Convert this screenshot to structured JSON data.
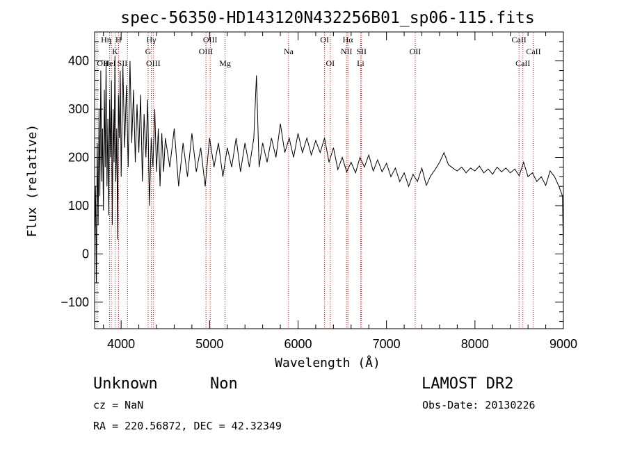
{
  "title": "spec-56350-HD143120N432256B01_sp06-115.fits",
  "info": {
    "object_type": "Unknown",
    "object_class": "Non",
    "survey": "LAMOST DR2",
    "cz": "cz = NaN",
    "obs_date": "Obs-Date: 20130226",
    "radec": "RA = 220.56872, DEC =  42.32349"
  },
  "chart_data": {
    "type": "line",
    "title": "spec-56350-HD143120N432256B01_sp06-115.fits",
    "xlabel": "Wavelength (Å)",
    "ylabel": "Flux (relative)",
    "xlim": [
      3700,
      9000
    ],
    "ylim": [
      -155,
      460
    ],
    "x_ticks": [
      4000,
      5000,
      6000,
      7000,
      8000,
      9000
    ],
    "y_ticks": [
      -100,
      0,
      100,
      200,
      300,
      400
    ],
    "grid": false,
    "line_color": "#000000",
    "marker_color": "#cc0000",
    "series": [
      {
        "points": [
          [
            3700,
            20
          ],
          [
            3710,
            140
          ],
          [
            3720,
            -60
          ],
          [
            3730,
            230
          ],
          [
            3740,
            60
          ],
          [
            3750,
            300
          ],
          [
            3760,
            120
          ],
          [
            3770,
            380
          ],
          [
            3780,
            150
          ],
          [
            3790,
            260
          ],
          [
            3800,
            90
          ],
          [
            3810,
            340
          ],
          [
            3820,
            180
          ],
          [
            3830,
            400
          ],
          [
            3840,
            140
          ],
          [
            3850,
            280
          ],
          [
            3860,
            80
          ],
          [
            3870,
            320
          ],
          [
            3880,
            200
          ],
          [
            3890,
            360
          ],
          [
            3900,
            60
          ],
          [
            3910,
            300
          ],
          [
            3920,
            190
          ],
          [
            3930,
            410
          ],
          [
            3940,
            150
          ],
          [
            3950,
            260
          ],
          [
            3960,
            30
          ],
          [
            3970,
            330
          ],
          [
            3980,
            240
          ],
          [
            3990,
            380
          ],
          [
            4000,
            160
          ],
          [
            4020,
            390
          ],
          [
            4040,
            220
          ],
          [
            4060,
            350
          ],
          [
            4080,
            180
          ],
          [
            4100,
            400
          ],
          [
            4120,
            230
          ],
          [
            4140,
            340
          ],
          [
            4160,
            190
          ],
          [
            4180,
            310
          ],
          [
            4200,
            210
          ],
          [
            4220,
            330
          ],
          [
            4240,
            150
          ],
          [
            4260,
            290
          ],
          [
            4280,
            200
          ],
          [
            4300,
            320
          ],
          [
            4320,
            100
          ],
          [
            4340,
            240
          ],
          [
            4360,
            180
          ],
          [
            4380,
            300
          ],
          [
            4400,
            170
          ],
          [
            4420,
            260
          ],
          [
            4440,
            140
          ],
          [
            4460,
            250
          ],
          [
            4480,
            170
          ],
          [
            4500,
            240
          ],
          [
            4550,
            180
          ],
          [
            4600,
            260
          ],
          [
            4650,
            140
          ],
          [
            4700,
            230
          ],
          [
            4750,
            160
          ],
          [
            4800,
            250
          ],
          [
            4850,
            170
          ],
          [
            4900,
            220
          ],
          [
            4950,
            140
          ],
          [
            5000,
            240
          ],
          [
            5050,
            180
          ],
          [
            5100,
            230
          ],
          [
            5150,
            160
          ],
          [
            5200,
            220
          ],
          [
            5250,
            180
          ],
          [
            5300,
            240
          ],
          [
            5350,
            170
          ],
          [
            5400,
            230
          ],
          [
            5450,
            180
          ],
          [
            5500,
            240
          ],
          [
            5530,
            370
          ],
          [
            5560,
            180
          ],
          [
            5600,
            230
          ],
          [
            5650,
            190
          ],
          [
            5700,
            240
          ],
          [
            5750,
            200
          ],
          [
            5800,
            270
          ],
          [
            5850,
            210
          ],
          [
            5900,
            240
          ],
          [
            5950,
            200
          ],
          [
            6000,
            250
          ],
          [
            6050,
            210
          ],
          [
            6100,
            240
          ],
          [
            6150,
            205
          ],
          [
            6200,
            235
          ],
          [
            6250,
            210
          ],
          [
            6300,
            240
          ],
          [
            6350,
            190
          ],
          [
            6400,
            220
          ],
          [
            6450,
            175
          ],
          [
            6500,
            200
          ],
          [
            6550,
            170
          ],
          [
            6600,
            190
          ],
          [
            6650,
            168
          ],
          [
            6700,
            200
          ],
          [
            6750,
            180
          ],
          [
            6800,
            205
          ],
          [
            6850,
            172
          ],
          [
            6900,
            195
          ],
          [
            6950,
            170
          ],
          [
            7000,
            188
          ],
          [
            7050,
            160
          ],
          [
            7100,
            178
          ],
          [
            7150,
            150
          ],
          [
            7200,
            168
          ],
          [
            7250,
            140
          ],
          [
            7300,
            165
          ],
          [
            7350,
            150
          ],
          [
            7400,
            178
          ],
          [
            7450,
            142
          ],
          [
            7500,
            162
          ],
          [
            7550,
            175
          ],
          [
            7600,
            190
          ],
          [
            7650,
            210
          ],
          [
            7700,
            185
          ],
          [
            7750,
            178
          ],
          [
            7800,
            172
          ],
          [
            7850,
            180
          ],
          [
            7900,
            168
          ],
          [
            7950,
            178
          ],
          [
            8000,
            172
          ],
          [
            8050,
            182
          ],
          [
            8100,
            168
          ],
          [
            8150,
            176
          ],
          [
            8200,
            165
          ],
          [
            8250,
            180
          ],
          [
            8300,
            170
          ],
          [
            8350,
            178
          ],
          [
            8400,
            168
          ],
          [
            8450,
            176
          ],
          [
            8500,
            162
          ],
          [
            8550,
            190
          ],
          [
            8600,
            160
          ],
          [
            8650,
            168
          ],
          [
            8700,
            150
          ],
          [
            8750,
            160
          ],
          [
            8800,
            142
          ],
          [
            8850,
            172
          ],
          [
            8900,
            160
          ],
          [
            8950,
            140
          ],
          [
            8990,
            120
          ],
          [
            9000,
            0
          ]
        ]
      }
    ],
    "line_markers": [
      {
        "x": 3889,
        "label": "Hη",
        "row": 0,
        "align": "end"
      },
      {
        "x": 3933,
        "label": "K",
        "row": 1,
        "align": "middle"
      },
      {
        "x": 3970,
        "label": "H",
        "row": 0,
        "align": "middle"
      },
      {
        "x": 3727,
        "label": "OII",
        "row": 2,
        "align": "start"
      },
      {
        "x": 3869,
        "label": "HeI",
        "row": 2,
        "align": "middle"
      },
      {
        "x": 4072,
        "label": "SII",
        "row": 2,
        "align": "end"
      },
      {
        "x": 4341,
        "label": "Hγ",
        "row": 0,
        "align": "middle"
      },
      {
        "x": 4305,
        "label": "G",
        "row": 1,
        "align": "middle"
      },
      {
        "x": 4363,
        "label": "OIII",
        "row": 2,
        "align": "middle"
      },
      {
        "x": 5007,
        "label": "OIII",
        "row": 0,
        "align": "middle"
      },
      {
        "x": 4959,
        "label": "OIII",
        "row": 1,
        "align": "middle"
      },
      {
        "x": 5175,
        "label": "Mg",
        "row": 2,
        "align": "middle"
      },
      {
        "x": 5893,
        "label": "Na",
        "row": 1,
        "align": "middle"
      },
      {
        "x": 6300,
        "label": "OI",
        "row": 0,
        "align": "middle"
      },
      {
        "x": 6364,
        "label": "OI",
        "row": 2,
        "align": "middle"
      },
      {
        "x": 6563,
        "label": "Hα",
        "row": 0,
        "align": "middle"
      },
      {
        "x": 6548,
        "label": "NII",
        "row": 1,
        "align": "middle"
      },
      {
        "x": 6717,
        "label": "SII",
        "row": 1,
        "align": "middle"
      },
      {
        "x": 6707,
        "label": "Li",
        "row": 2,
        "align": "middle"
      },
      {
        "x": 7325,
        "label": "OII",
        "row": 1,
        "align": "middle"
      },
      {
        "x": 8498,
        "label": "CaII",
        "row": 0,
        "align": "middle"
      },
      {
        "x": 8542,
        "label": "CaII",
        "row": 2,
        "align": "middle"
      },
      {
        "x": 8662,
        "label": "CaII",
        "row": 1,
        "align": "middle"
      }
    ]
  }
}
